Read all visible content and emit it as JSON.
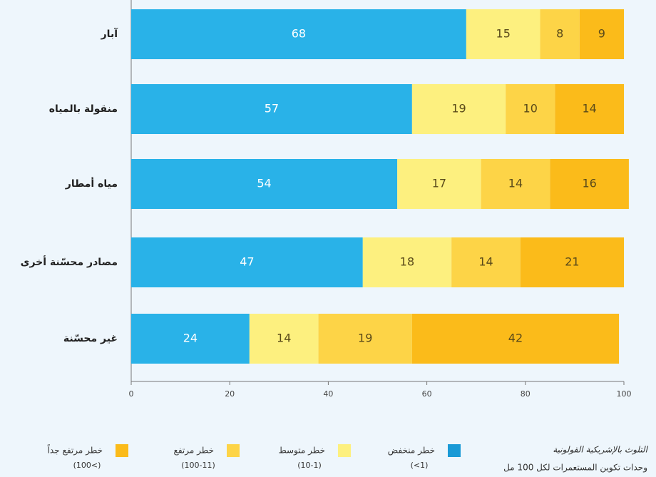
{
  "chart_data": {
    "type": "stacked_barh",
    "categories": [
      "آبار",
      "منقولة بالمياه",
      "مياه أمطار",
      "مصادر محسّنة أخرى",
      "غير محسّنة"
    ],
    "series": [
      {
        "name": "خطر منخفض",
        "range": "(<1)",
        "color": "#29b2e8",
        "legend_color": "#1a9ad6",
        "text_color": "#ffffff",
        "values": [
          68,
          57,
          54,
          47,
          24
        ]
      },
      {
        "name": "خطر متوسط",
        "range": "(10-1)",
        "color": "#fdf07f",
        "legend_color": "#fdf07f",
        "text_color": "#5a4a1a",
        "values": [
          15,
          19,
          17,
          18,
          14
        ]
      },
      {
        "name": "خطر مرتفع",
        "range": "(100-11)",
        "color": "#fdd447",
        "legend_color": "#fdd447",
        "text_color": "#5a4a1a",
        "values": [
          8,
          10,
          14,
          14,
          19
        ]
      },
      {
        "name": "خطر مرتفع جداً",
        "range": "(100<)",
        "color": "#fbbb1a",
        "legend_color": "#fbbb1a",
        "text_color": "#5a4a1a",
        "values": [
          9,
          14,
          16,
          21,
          42
        ]
      }
    ],
    "legend_title": [
      "التلوث بالإشريكية القولونية",
      "وحدات تكوين المستعمرات لكل 100 مل"
    ],
    "xlim": [
      0,
      100
    ],
    "xticks": [
      0,
      20,
      40,
      60,
      80,
      100
    ]
  }
}
